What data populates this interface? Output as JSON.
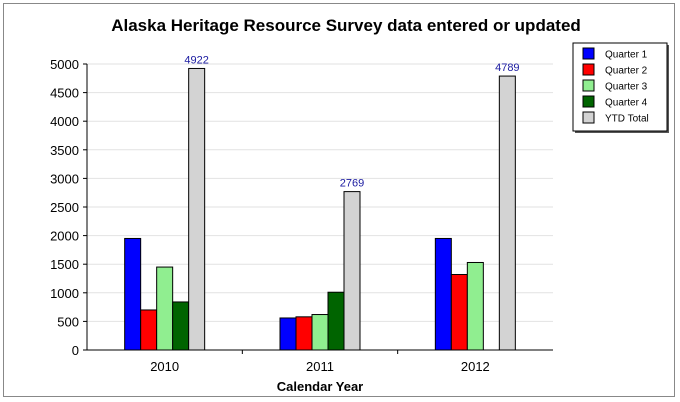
{
  "chart_data": {
    "type": "bar",
    "title": "Alaska Heritage Resource Survey data entered or updated",
    "xlabel": "Calendar Year",
    "ylabel": "",
    "ylim": [
      0,
      5000
    ],
    "yticks": [
      0,
      500,
      1000,
      1500,
      2000,
      2500,
      3000,
      3500,
      4000,
      4500,
      5000
    ],
    "categories": [
      "2010",
      "2011",
      "2012"
    ],
    "series": [
      {
        "name": "Quarter 1",
        "color": "#0000ff",
        "values": [
          1950,
          560,
          1950
        ]
      },
      {
        "name": "Quarter 2",
        "color": "#ff0000",
        "values": [
          700,
          580,
          1320
        ]
      },
      {
        "name": "Quarter 3",
        "color": "#90ee90",
        "values": [
          1450,
          620,
          1530
        ]
      },
      {
        "name": "Quarter 4",
        "color": "#006400",
        "values": [
          840,
          1010,
          null
        ]
      },
      {
        "name": "YTD Total",
        "color": "#d3d3d3",
        "values": [
          4922,
          2769,
          4789
        ],
        "labels": [
          "4922",
          "2769",
          "4789"
        ]
      }
    ],
    "grid": true,
    "legend": "top-right"
  }
}
